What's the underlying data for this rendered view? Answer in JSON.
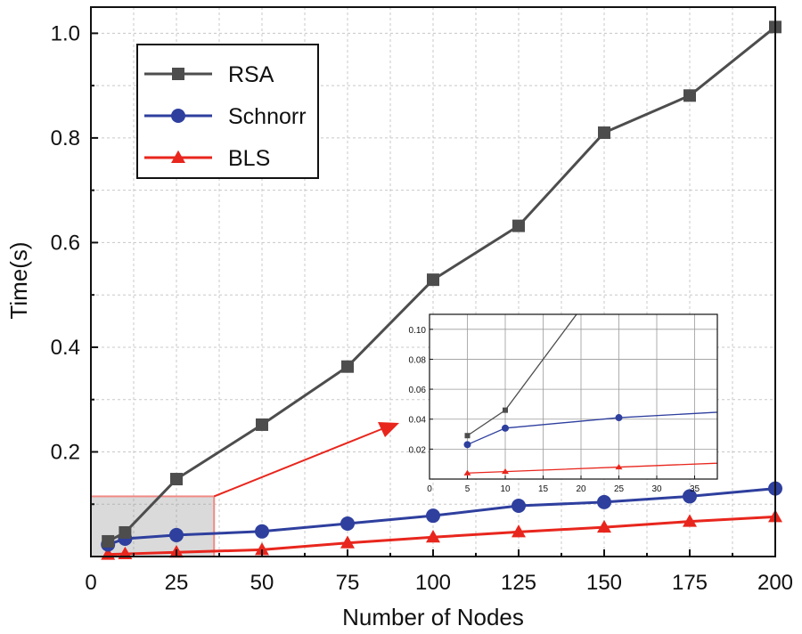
{
  "chart_data": {
    "type": "line",
    "xlabel": "Number of Nodes",
    "ylabel": "Time(s)",
    "xlim": [
      0,
      200
    ],
    "ylim": [
      0,
      1.05
    ],
    "x_ticks": [
      "0",
      "25",
      "50",
      "75",
      "100",
      "125",
      "150",
      "175",
      "200"
    ],
    "y_ticks": [
      "0.2",
      "0.4",
      "0.6",
      "0.8",
      "1.0"
    ],
    "grid": true,
    "legend_position": "top-left",
    "x": [
      5,
      10,
      25,
      50,
      75,
      100,
      125,
      150,
      175,
      200
    ],
    "series": [
      {
        "name": "RSA",
        "color": "#4d4d4d",
        "marker": "square",
        "values": [
          0.029,
          0.046,
          0.148,
          0.252,
          0.363,
          0.529,
          0.632,
          0.81,
          0.881,
          1.012
        ]
      },
      {
        "name": "Schnorr",
        "color": "#2e3f9e",
        "marker": "circle",
        "values": [
          0.023,
          0.034,
          0.041,
          0.048,
          0.063,
          0.078,
          0.097,
          0.104,
          0.115,
          0.13
        ]
      },
      {
        "name": "BLS",
        "color": "#e8261d",
        "marker": "triangle",
        "values": [
          0.004,
          0.005,
          0.008,
          0.013,
          0.026,
          0.037,
          0.047,
          0.056,
          0.067,
          0.076
        ]
      }
    ],
    "inset": {
      "xlim": [
        0,
        38
      ],
      "ylim": [
        0,
        0.11
      ],
      "x_ticks": [
        "0",
        "5",
        "10",
        "15",
        "20",
        "25",
        "30",
        "35"
      ],
      "y_ticks": [
        "0.02",
        "0.04",
        "0.06",
        "0.08",
        "0.10"
      ],
      "grid": true
    }
  }
}
